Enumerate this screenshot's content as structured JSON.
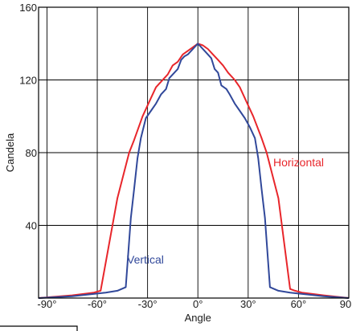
{
  "chart_data": {
    "type": "line",
    "xlabel": "Angle",
    "ylabel": "Candela",
    "xlim": [
      -95,
      90
    ],
    "ylim": [
      0,
      160
    ],
    "x_ticks": [
      -90,
      -60,
      -30,
      0,
      30,
      60,
      90
    ],
    "x_tick_labels": [
      "-90°",
      "-60°",
      "-30°",
      "0°",
      "30°",
      "60°",
      "90"
    ],
    "y_ticks": [
      40,
      80,
      120,
      160
    ],
    "y_tick_labels": [
      "40",
      "80",
      "120",
      "160"
    ],
    "grid": true,
    "legend": "inline labels",
    "series": [
      {
        "name": "Horizontal",
        "color": "#e8262b",
        "x": [
          -95,
          -75,
          -62,
          -58,
          -48,
          -41,
          -38,
          -33,
          -28,
          -25,
          -22,
          -18,
          -15,
          -12,
          -9,
          -6,
          -3,
          0,
          3,
          6,
          9,
          12,
          15,
          18,
          22,
          25,
          28,
          33,
          38,
          41,
          48,
          55,
          58,
          62,
          75,
          90
        ],
        "y": [
          0,
          1.5,
          3,
          4,
          55,
          80,
          87,
          100,
          110,
          116,
          119,
          123,
          128,
          130,
          134,
          136,
          138,
          140,
          139,
          137,
          134,
          131,
          128,
          124,
          120,
          116,
          110,
          100,
          88,
          80,
          55,
          5,
          4,
          3,
          1.5,
          0
        ]
      },
      {
        "name": "Vertical",
        "color": "#31489a",
        "x": [
          -95,
          -75,
          -55,
          -48,
          -43,
          -40,
          -38,
          -36,
          -34,
          -31,
          -28,
          -25,
          -22,
          -19,
          -17,
          -14,
          -12,
          -10,
          -8,
          -6,
          -4,
          -2,
          0,
          2,
          4,
          6,
          8,
          10,
          12,
          14,
          17,
          19,
          22,
          25,
          28,
          31,
          34,
          36,
          38,
          40,
          43,
          48,
          55,
          75,
          90
        ],
        "y": [
          0,
          1,
          3,
          4,
          6,
          44,
          60,
          77,
          88,
          99,
          103,
          107,
          112,
          115,
          121,
          124,
          126,
          131,
          133,
          134,
          136,
          138,
          140,
          138,
          136,
          134,
          132,
          126,
          124,
          117,
          115,
          112,
          107,
          103,
          99,
          94,
          88,
          77,
          60,
          44,
          6,
          4,
          3,
          1,
          0
        ]
      }
    ],
    "annotations": [
      "Horizontal",
      "Vertical"
    ]
  }
}
